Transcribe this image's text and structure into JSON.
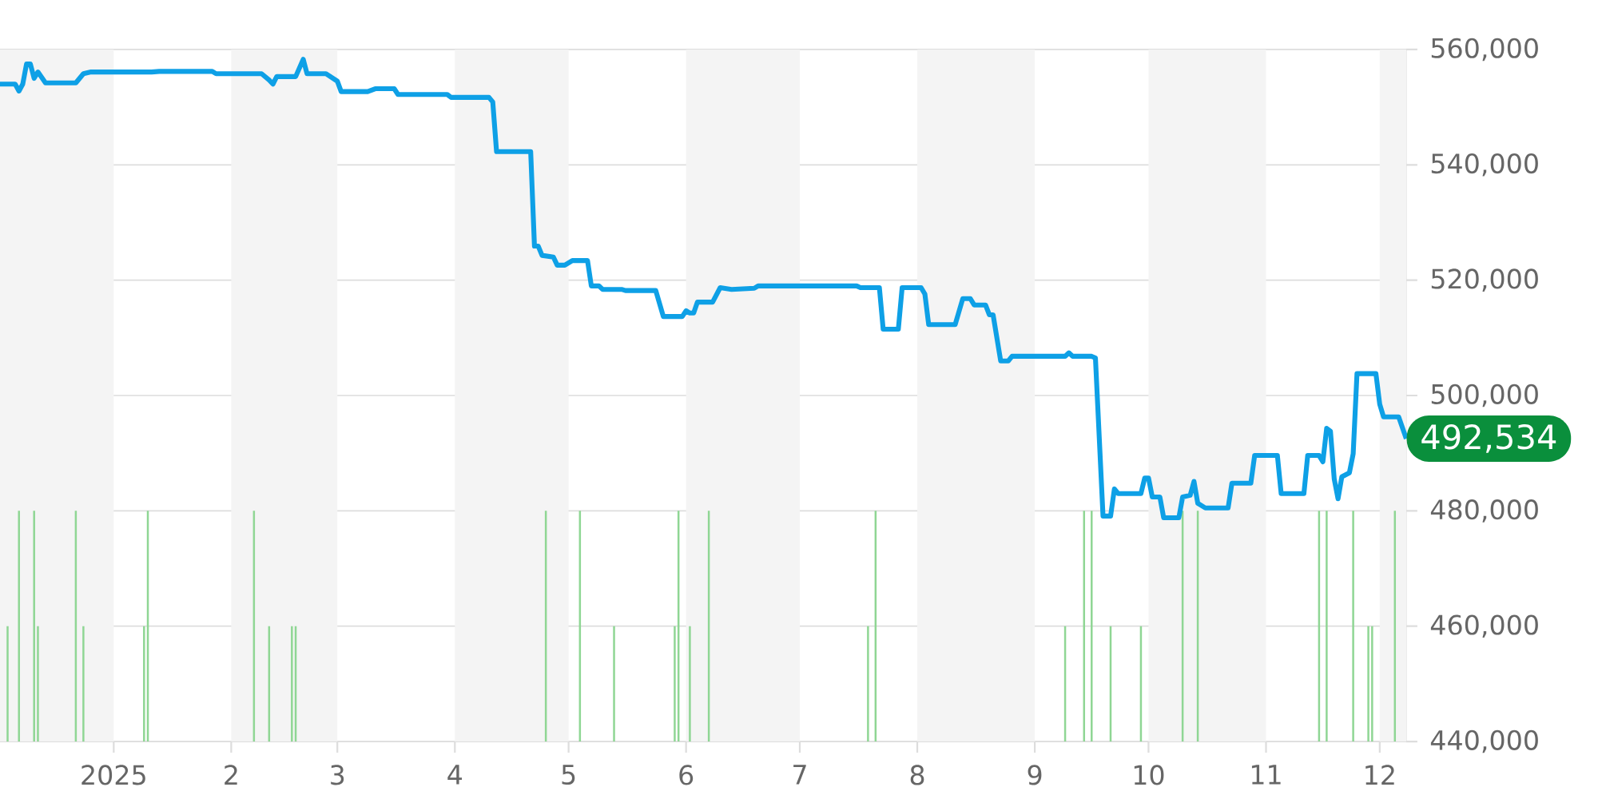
{
  "chart_data": {
    "type": "line",
    "xlim": [
      "2024-12-02",
      "2025-12-08"
    ],
    "ylim": [
      440000,
      560000
    ],
    "xticks": [
      {
        "value": "2025-01-01",
        "label": "2025"
      },
      {
        "value": "2025-02-01",
        "label": "2"
      },
      {
        "value": "2025-03-01",
        "label": "3"
      },
      {
        "value": "2025-04-01",
        "label": "4"
      },
      {
        "value": "2025-05-01",
        "label": "5"
      },
      {
        "value": "2025-06-01",
        "label": "6"
      },
      {
        "value": "2025-07-01",
        "label": "7"
      },
      {
        "value": "2025-08-01",
        "label": "8"
      },
      {
        "value": "2025-09-01",
        "label": "9"
      },
      {
        "value": "2025-10-01",
        "label": "10"
      },
      {
        "value": "2025-11-01",
        "label": "11"
      },
      {
        "value": "2025-12-01",
        "label": "12"
      }
    ],
    "yticks": [
      {
        "value": 440000,
        "label": "440,000"
      },
      {
        "value": 460000,
        "label": "460,000"
      },
      {
        "value": 480000,
        "label": "480,000"
      },
      {
        "value": 500000,
        "label": "500,000"
      },
      {
        "value": 520000,
        "label": "520,000"
      },
      {
        "value": 540000,
        "label": "540,000"
      },
      {
        "value": 560000,
        "label": "560,000"
      }
    ],
    "grid": "y",
    "bands": [
      {
        "axis": "x",
        "from": "2024-12-02",
        "to": "2025-01-01",
        "color": "#f4f4f4"
      },
      {
        "axis": "x",
        "from": "2025-02-01",
        "to": "2025-03-01",
        "color": "#f4f4f4"
      },
      {
        "axis": "x",
        "from": "2025-04-01",
        "to": "2025-05-01",
        "color": "#f4f4f4"
      },
      {
        "axis": "x",
        "from": "2025-06-01",
        "to": "2025-07-01",
        "color": "#f4f4f4"
      },
      {
        "axis": "x",
        "from": "2025-08-01",
        "to": "2025-09-01",
        "color": "#f4f4f4"
      },
      {
        "axis": "x",
        "from": "2025-10-01",
        "to": "2025-11-01",
        "color": "#f4f4f4"
      },
      {
        "axis": "x",
        "from": "2025-12-01",
        "to": "2025-12-08",
        "color": "#f4f4f4"
      }
    ],
    "annotations": [
      {
        "text": "492,534",
        "x": "2025-12-08",
        "y": 492534
      }
    ],
    "series": [
      {
        "type": "bar",
        "color": "#8fd694",
        "x": [
          "2024-12-04",
          "2024-12-07",
          "2024-12-11",
          "2024-12-12",
          "2024-12-22",
          "2024-12-24",
          "2025-01-09",
          "2025-01-10",
          "2025-02-07",
          "2025-02-11",
          "2025-02-17",
          "2025-02-18",
          "2025-04-25",
          "2025-05-04",
          "2025-05-13",
          "2025-05-29",
          "2025-05-30",
          "2025-06-02",
          "2025-06-07",
          "2025-07-19",
          "2025-07-21",
          "2025-09-09",
          "2025-09-14",
          "2025-09-16",
          "2025-09-21",
          "2025-09-29",
          "2025-10-10",
          "2025-10-14",
          "2025-11-15",
          "2025-11-17",
          "2025-11-24",
          "2025-11-28",
          "2025-11-29",
          "2025-12-05"
        ],
        "values": [
          460000,
          480000,
          480000,
          460000,
          480000,
          460000,
          460000,
          480000,
          480000,
          460000,
          460000,
          460000,
          480000,
          480000,
          460000,
          460000,
          480000,
          460000,
          480000,
          460000,
          480000,
          460000,
          480000,
          480000,
          460000,
          460000,
          480000,
          480000,
          480000,
          480000,
          480000,
          460000,
          460000,
          480000
        ]
      },
      {
        "color": "#0ea0e6",
        "x": [
          "2024-12-02",
          "2024-12-06",
          "2024-12-07",
          "2024-12-08",
          "2024-12-09",
          "2024-12-10",
          "2024-12-11",
          "2024-12-12",
          "2024-12-14",
          "2024-12-22",
          "2024-12-24",
          "2024-12-26",
          "2025-01-11",
          "2025-01-13",
          "2025-01-27",
          "2025-01-28",
          "2025-02-09",
          "2025-02-11",
          "2025-02-12",
          "2025-02-13",
          "2025-02-18",
          "2025-02-20",
          "2025-02-21",
          "2025-02-26",
          "2025-03-01",
          "2025-03-02",
          "2025-03-09",
          "2025-03-11",
          "2025-03-16",
          "2025-03-17",
          "2025-03-30",
          "2025-03-31",
          "2025-04-10",
          "2025-04-11",
          "2025-04-12",
          "2025-04-21",
          "2025-04-22",
          "2025-04-23",
          "2025-04-24",
          "2025-04-27",
          "2025-04-28",
          "2025-04-30",
          "2025-05-02",
          "2025-05-06",
          "2025-05-07",
          "2025-05-09",
          "2025-05-10",
          "2025-05-15",
          "2025-05-16",
          "2025-05-24",
          "2025-05-26",
          "2025-05-31",
          "2025-06-01",
          "2025-06-02",
          "2025-06-03",
          "2025-06-04",
          "2025-06-08",
          "2025-06-10",
          "2025-06-13",
          "2025-06-19",
          "2025-06-20",
          "2025-07-16",
          "2025-07-17",
          "2025-07-22",
          "2025-07-23",
          "2025-07-27",
          "2025-07-28",
          "2025-08-02",
          "2025-08-03",
          "2025-08-04",
          "2025-08-11",
          "2025-08-13",
          "2025-08-15",
          "2025-08-16",
          "2025-08-19",
          "2025-08-20",
          "2025-08-21",
          "2025-08-23",
          "2025-08-25",
          "2025-08-26",
          "2025-09-09",
          "2025-09-10",
          "2025-09-11",
          "2025-09-16",
          "2025-09-17",
          "2025-09-19",
          "2025-09-21",
          "2025-09-22",
          "2025-09-23",
          "2025-09-29",
          "2025-09-30",
          "2025-10-01",
          "2025-10-02",
          "2025-10-04",
          "2025-10-05",
          "2025-10-09",
          "2025-10-10",
          "2025-10-12",
          "2025-10-13",
          "2025-10-14",
          "2025-10-16",
          "2025-10-22",
          "2025-10-23",
          "2025-10-28",
          "2025-10-29",
          "2025-11-04",
          "2025-11-05",
          "2025-11-11",
          "2025-11-12",
          "2025-11-15",
          "2025-11-16",
          "2025-11-17",
          "2025-11-18",
          "2025-11-19",
          "2025-11-20",
          "2025-11-21",
          "2025-11-23",
          "2025-11-24",
          "2025-11-25",
          "2025-11-30",
          "2025-12-01",
          "2025-12-02",
          "2025-12-06",
          "2025-12-08"
        ],
        "values": [
          554000,
          554000,
          552800,
          554000,
          557500,
          557500,
          555000,
          556100,
          554200,
          554200,
          555800,
          556100,
          556100,
          556200,
          556200,
          555800,
          555800,
          554700,
          554000,
          555300,
          555300,
          558300,
          555800,
          555800,
          554500,
          552700,
          552700,
          553200,
          553200,
          552200,
          552200,
          551700,
          551700,
          550900,
          542300,
          542300,
          525900,
          525900,
          524300,
          524000,
          522600,
          522600,
          523400,
          523400,
          519000,
          519000,
          518400,
          518400,
          518200,
          518200,
          513700,
          513700,
          514700,
          514300,
          514300,
          516200,
          516200,
          518700,
          518400,
          518600,
          519000,
          519000,
          518700,
          518700,
          511500,
          511500,
          518700,
          518700,
          517600,
          512300,
          512300,
          516800,
          516800,
          515700,
          515700,
          514000,
          514000,
          506000,
          506000,
          506800,
          506800,
          507400,
          506800,
          506800,
          506500,
          479100,
          479100,
          483800,
          483000,
          483000,
          485700,
          485700,
          482400,
          482400,
          478800,
          478800,
          482400,
          482700,
          485100,
          481300,
          480500,
          480500,
          484800,
          484800,
          489600,
          489600,
          483000,
          483000,
          489600,
          489600,
          488500,
          494300,
          493800,
          485500,
          482100,
          485900,
          486600,
          489900,
          503800,
          503800,
          498500,
          496300,
          496300,
          492534
        ]
      }
    ]
  }
}
